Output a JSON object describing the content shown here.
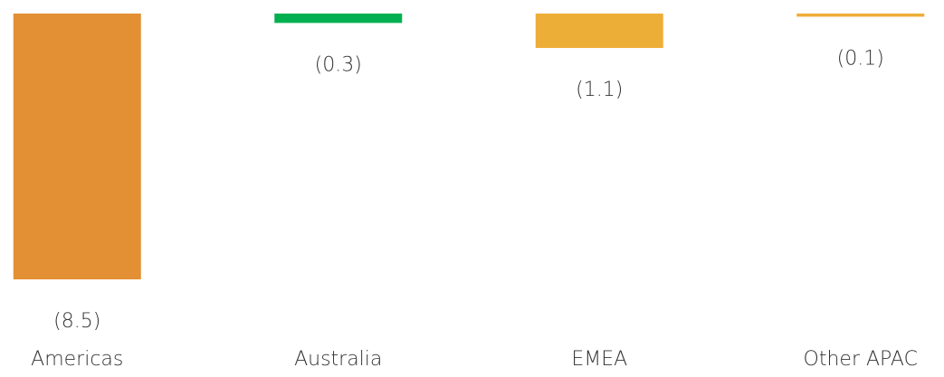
{
  "chart_data": {
    "type": "bar",
    "categories": [
      "Americas",
      "Australia",
      "EMEA",
      "Other APAC"
    ],
    "values": [
      -8.5,
      -0.3,
      -1.1,
      -0.1
    ],
    "value_labels": [
      "(8.5)",
      "(0.3)",
      "(1.1)",
      "(0.1)"
    ],
    "colors": [
      "#E38F34",
      "#00B050",
      "#EDAE37",
      "#EDAE37"
    ]
  }
}
